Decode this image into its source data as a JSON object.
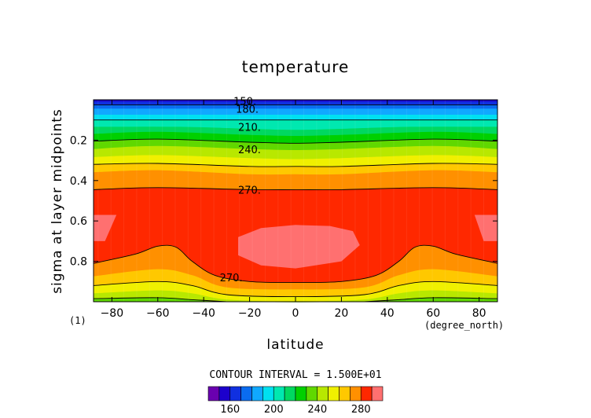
{
  "chart_data": {
    "type": "heatmap",
    "title": "temperature",
    "xlabel": "latitude",
    "ylabel": "sigma at layer midpoints",
    "x_unit": "(degree_north)",
    "frame_label": "(1)",
    "xlim": [
      -88,
      88
    ],
    "ylim": [
      0.0,
      1.0
    ],
    "y_reversed": true,
    "x_ticks": [
      -80,
      -60,
      -40,
      -20,
      0,
      20,
      40,
      60,
      80
    ],
    "x_tick_labels": [
      "−80",
      "−60",
      "−40",
      "−20",
      "0",
      "20",
      "40",
      "60",
      "80"
    ],
    "y_ticks": [
      0.2,
      0.4,
      0.6,
      0.8
    ],
    "y_tick_labels": [
      "0.2",
      "0.4",
      "0.6",
      "0.8"
    ],
    "contour_interval_text": "CONTOUR INTERVAL = 1.500E+01",
    "contour_labels": [
      {
        "text": "150.",
        "lat": -27,
        "sigma": 0.005
      },
      {
        "text": "180.",
        "lat": -26,
        "sigma": 0.045
      },
      {
        "text": "210.",
        "lat": -25,
        "sigma": 0.135
      },
      {
        "text": "240.",
        "lat": -25,
        "sigma": 0.245
      },
      {
        "text": "270.",
        "lat": -25,
        "sigma": 0.445
      },
      {
        "text": "270.",
        "lat": -33,
        "sigma": 0.88
      }
    ],
    "colorbar": {
      "levels": [
        140,
        150,
        160,
        170,
        180,
        190,
        200,
        210,
        220,
        230,
        240,
        250,
        260,
        270,
        280,
        290
      ],
      "tick_labels": [
        "160",
        "200",
        "240",
        "280"
      ],
      "tick_values": [
        160,
        200,
        240,
        280
      ],
      "colors": [
        "#6a00b0",
        "#1c00cc",
        "#1030e0",
        "#0a6cf0",
        "#10a8ff",
        "#00e0f0",
        "#00e8b0",
        "#00d860",
        "#00d000",
        "#60d800",
        "#b8e800",
        "#f0f000",
        "#ffc800",
        "#ff9000",
        "#ff2800",
        "#ff7070"
      ]
    },
    "bands": [
      {
        "level_index": 1,
        "profile": [
          [
            -88,
            0.0
          ],
          [
            88,
            0.0
          ]
        ]
      },
      {
        "level_index": 2,
        "profile": [
          [
            -88,
            0.01
          ],
          [
            88,
            0.01
          ]
        ]
      },
      {
        "level_index": 3,
        "profile": [
          [
            -88,
            0.025
          ],
          [
            88,
            0.025
          ]
        ]
      },
      {
        "level_index": 4,
        "profile": [
          [
            -88,
            0.045
          ],
          [
            88,
            0.045
          ]
        ]
      },
      {
        "level_index": 5,
        "profile": [
          [
            -88,
            0.075
          ],
          [
            88,
            0.075
          ]
        ]
      },
      {
        "level_index": 6,
        "profile": [
          [
            -88,
            0.1
          ],
          [
            88,
            0.1
          ]
        ]
      },
      {
        "level_index": 7,
        "profile": [
          [
            -88,
            0.135
          ],
          [
            -50,
            0.135
          ],
          [
            -20,
            0.145
          ],
          [
            0,
            0.15
          ],
          [
            20,
            0.145
          ],
          [
            50,
            0.135
          ],
          [
            88,
            0.135
          ]
        ]
      },
      {
        "level_index": 8,
        "profile": [
          [
            -88,
            0.17
          ],
          [
            -60,
            0.16
          ],
          [
            -20,
            0.175
          ],
          [
            0,
            0.18
          ],
          [
            20,
            0.175
          ],
          [
            60,
            0.16
          ],
          [
            88,
            0.17
          ]
        ]
      },
      {
        "level_index": 9,
        "profile": [
          [
            -88,
            0.205
          ],
          [
            -60,
            0.195
          ],
          [
            -20,
            0.21
          ],
          [
            0,
            0.215
          ],
          [
            20,
            0.21
          ],
          [
            60,
            0.195
          ],
          [
            88,
            0.205
          ]
        ]
      },
      {
        "level_index": 10,
        "profile": [
          [
            -88,
            0.245
          ],
          [
            -60,
            0.23
          ],
          [
            -20,
            0.245
          ],
          [
            0,
            0.25
          ],
          [
            20,
            0.245
          ],
          [
            60,
            0.23
          ],
          [
            88,
            0.245
          ]
        ]
      },
      {
        "level_index": 11,
        "profile": [
          [
            -88,
            0.285
          ],
          [
            -60,
            0.275
          ],
          [
            -20,
            0.29
          ],
          [
            0,
            0.295
          ],
          [
            20,
            0.29
          ],
          [
            60,
            0.275
          ],
          [
            88,
            0.285
          ]
        ]
      },
      {
        "level_index": 12,
        "profile": [
          [
            -88,
            0.32
          ],
          [
            -60,
            0.315
          ],
          [
            -20,
            0.33
          ],
          [
            0,
            0.33
          ],
          [
            20,
            0.33
          ],
          [
            60,
            0.315
          ],
          [
            88,
            0.32
          ]
        ]
      },
      {
        "level_index": 13,
        "profile": [
          [
            -88,
            0.36
          ],
          [
            -60,
            0.35
          ],
          [
            -20,
            0.37
          ],
          [
            0,
            0.37
          ],
          [
            20,
            0.37
          ],
          [
            60,
            0.35
          ],
          [
            88,
            0.36
          ]
        ]
      },
      {
        "level_index": 14,
        "profile": [
          [
            -88,
            0.445
          ],
          [
            -60,
            0.435
          ],
          [
            -20,
            0.445
          ],
          [
            0,
            0.445
          ],
          [
            20,
            0.445
          ],
          [
            60,
            0.435
          ],
          [
            88,
            0.445
          ]
        ]
      },
      {
        "level_index": 13,
        "profile": [
          [
            -88,
            0.81
          ],
          [
            -70,
            0.765
          ],
          [
            -60,
            0.725
          ],
          [
            -52,
            0.73
          ],
          [
            -45,
            0.8
          ],
          [
            -35,
            0.87
          ],
          [
            -20,
            0.9
          ],
          [
            0,
            0.905
          ],
          [
            20,
            0.9
          ],
          [
            35,
            0.87
          ],
          [
            45,
            0.8
          ],
          [
            52,
            0.73
          ],
          [
            60,
            0.725
          ],
          [
            70,
            0.765
          ],
          [
            88,
            0.81
          ]
        ]
      },
      {
        "level_index": 12,
        "profile": [
          [
            -88,
            0.875
          ],
          [
            -60,
            0.84
          ],
          [
            -45,
            0.87
          ],
          [
            -30,
            0.93
          ],
          [
            0,
            0.94
          ],
          [
            30,
            0.93
          ],
          [
            45,
            0.87
          ],
          [
            60,
            0.84
          ],
          [
            88,
            0.875
          ]
        ]
      },
      {
        "level_index": 11,
        "profile": [
          [
            -88,
            0.92
          ],
          [
            -60,
            0.9
          ],
          [
            -45,
            0.92
          ],
          [
            -30,
            0.965
          ],
          [
            0,
            0.975
          ],
          [
            30,
            0.965
          ],
          [
            45,
            0.92
          ],
          [
            60,
            0.9
          ],
          [
            88,
            0.92
          ]
        ]
      },
      {
        "level_index": 10,
        "profile": [
          [
            -88,
            0.96
          ],
          [
            -60,
            0.945
          ],
          [
            -45,
            0.96
          ],
          [
            -30,
            0.99
          ],
          [
            0,
            1.0
          ],
          [
            30,
            0.99
          ],
          [
            45,
            0.96
          ],
          [
            60,
            0.945
          ],
          [
            88,
            0.96
          ]
        ]
      },
      {
        "level_index": 9,
        "profile": [
          [
            -88,
            0.985
          ],
          [
            -60,
            0.98
          ],
          [
            -45,
            0.99
          ],
          [
            -30,
            1.0
          ],
          [
            30,
            1.0
          ],
          [
            45,
            0.99
          ],
          [
            60,
            0.98
          ],
          [
            88,
            0.985
          ]
        ]
      }
    ],
    "contours": [
      [
        [
          -88,
          0.025
        ],
        [
          88,
          0.025
        ]
      ],
      [
        [
          -88,
          0.1
        ],
        [
          88,
          0.1
        ]
      ],
      [
        [
          -88,
          0.205
        ],
        [
          -60,
          0.195
        ],
        [
          -20,
          0.21
        ],
        [
          0,
          0.215
        ],
        [
          20,
          0.21
        ],
        [
          60,
          0.195
        ],
        [
          88,
          0.205
        ]
      ],
      [
        [
          -88,
          0.32
        ],
        [
          -60,
          0.315
        ],
        [
          -20,
          0.33
        ],
        [
          0,
          0.33
        ],
        [
          20,
          0.33
        ],
        [
          60,
          0.315
        ],
        [
          88,
          0.32
        ]
      ],
      [
        [
          -88,
          0.445
        ],
        [
          -60,
          0.435
        ],
        [
          -20,
          0.445
        ],
        [
          0,
          0.445
        ],
        [
          20,
          0.445
        ],
        [
          60,
          0.435
        ],
        [
          88,
          0.445
        ]
      ],
      [
        [
          -88,
          0.81
        ],
        [
          -70,
          0.765
        ],
        [
          -60,
          0.725
        ],
        [
          -52,
          0.73
        ],
        [
          -45,
          0.8
        ],
        [
          -35,
          0.87
        ],
        [
          -20,
          0.9
        ],
        [
          0,
          0.905
        ],
        [
          20,
          0.9
        ],
        [
          35,
          0.87
        ],
        [
          45,
          0.8
        ],
        [
          52,
          0.73
        ],
        [
          60,
          0.725
        ],
        [
          70,
          0.765
        ],
        [
          88,
          0.81
        ]
      ],
      [
        [
          -88,
          0.92
        ],
        [
          -60,
          0.9
        ],
        [
          -45,
          0.92
        ],
        [
          -30,
          0.965
        ],
        [
          0,
          0.975
        ],
        [
          30,
          0.965
        ],
        [
          45,
          0.92
        ],
        [
          60,
          0.9
        ],
        [
          88,
          0.92
        ]
      ],
      [
        [
          -88,
          0.985
        ],
        [
          -60,
          0.98
        ],
        [
          -45,
          0.99
        ],
        [
          -30,
          1.0
        ]
      ],
      [
        [
          30,
          1.0
        ],
        [
          45,
          0.99
        ],
        [
          60,
          0.98
        ],
        [
          88,
          0.985
        ]
      ]
    ],
    "warm_cores": [
      {
        "level_index": 15,
        "polygon": [
          [
            -25,
            0.68
          ],
          [
            -15,
            0.635
          ],
          [
            0,
            0.62
          ],
          [
            15,
            0.625
          ],
          [
            25,
            0.65
          ],
          [
            28,
            0.72
          ],
          [
            20,
            0.8
          ],
          [
            0,
            0.835
          ],
          [
            -15,
            0.82
          ],
          [
            -25,
            0.77
          ]
        ]
      },
      {
        "level_index": 15,
        "polygon": [
          [
            -88,
            0.57
          ],
          [
            -78,
            0.57
          ],
          [
            -83,
            0.7
          ],
          [
            -88,
            0.7
          ]
        ]
      },
      {
        "level_index": 15,
        "polygon": [
          [
            78,
            0.57
          ],
          [
            88,
            0.57
          ],
          [
            88,
            0.7
          ],
          [
            82,
            0.7
          ]
        ]
      }
    ]
  }
}
